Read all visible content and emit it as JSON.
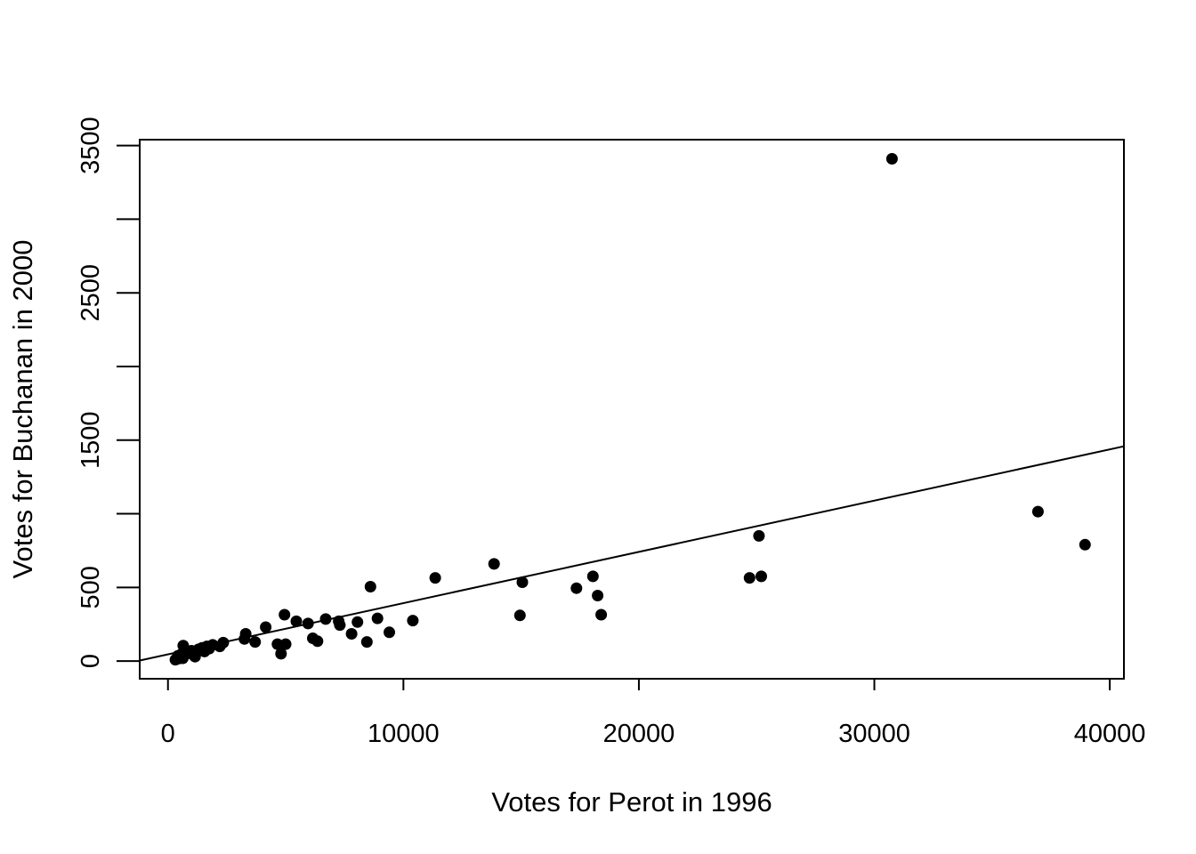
{
  "chart_data": {
    "type": "scatter",
    "title": "",
    "xlabel": "Votes for Perot in 1996",
    "ylabel": "Votes for Buchanan in 2000",
    "xlim": [
      -1200,
      40600
    ],
    "ylim": [
      -120,
      3540
    ],
    "xticks": [
      0,
      10000,
      20000,
      30000,
      40000
    ],
    "xtick_labels": [
      "0",
      "10000",
      "20000",
      "30000",
      "40000"
    ],
    "yticks": [
      0,
      500,
      1000,
      1500,
      2000,
      2500,
      3000,
      3500
    ],
    "ytick_labels": [
      "0",
      "500",
      "",
      "1500",
      "",
      "2500",
      "",
      "3500"
    ],
    "grid": false,
    "point_color": "#000000",
    "points": [
      [
        316,
        9
      ],
      [
        423,
        36
      ],
      [
        490,
        18
      ],
      [
        560,
        46
      ],
      [
        630,
        19
      ],
      [
        650,
        105
      ],
      [
        760,
        50
      ],
      [
        900,
        55
      ],
      [
        1000,
        70
      ],
      [
        1050,
        45
      ],
      [
        1150,
        30
      ],
      [
        1200,
        60
      ],
      [
        1300,
        80
      ],
      [
        1450,
        90
      ],
      [
        1550,
        65
      ],
      [
        1650,
        100
      ],
      [
        1750,
        85
      ],
      [
        1900,
        110
      ],
      [
        2200,
        100
      ],
      [
        2350,
        125
      ],
      [
        3250,
        150
      ],
      [
        3300,
        185
      ],
      [
        3700,
        130
      ],
      [
        4150,
        230
      ],
      [
        4650,
        115
      ],
      [
        4800,
        50
      ],
      [
        4950,
        315
      ],
      [
        5000,
        115
      ],
      [
        5450,
        270
      ],
      [
        5950,
        255
      ],
      [
        6150,
        155
      ],
      [
        6350,
        135
      ],
      [
        6700,
        285
      ],
      [
        7250,
        270
      ],
      [
        7300,
        245
      ],
      [
        7800,
        185
      ],
      [
        8050,
        265
      ],
      [
        8450,
        130
      ],
      [
        8600,
        505
      ],
      [
        8900,
        290
      ],
      [
        9400,
        195
      ],
      [
        10400,
        275
      ],
      [
        11350,
        565
      ],
      [
        13850,
        660
      ],
      [
        14950,
        310
      ],
      [
        15050,
        535
      ],
      [
        17350,
        495
      ],
      [
        18050,
        575
      ],
      [
        18250,
        445
      ],
      [
        18400,
        315
      ],
      [
        24700,
        565
      ],
      [
        25100,
        850
      ],
      [
        25200,
        575
      ],
      [
        30750,
        3410
      ],
      [
        36950,
        1015
      ],
      [
        38950,
        790
      ]
    ],
    "regression_line": {
      "intercept": 45.3,
      "slope": 0.0348
    }
  }
}
